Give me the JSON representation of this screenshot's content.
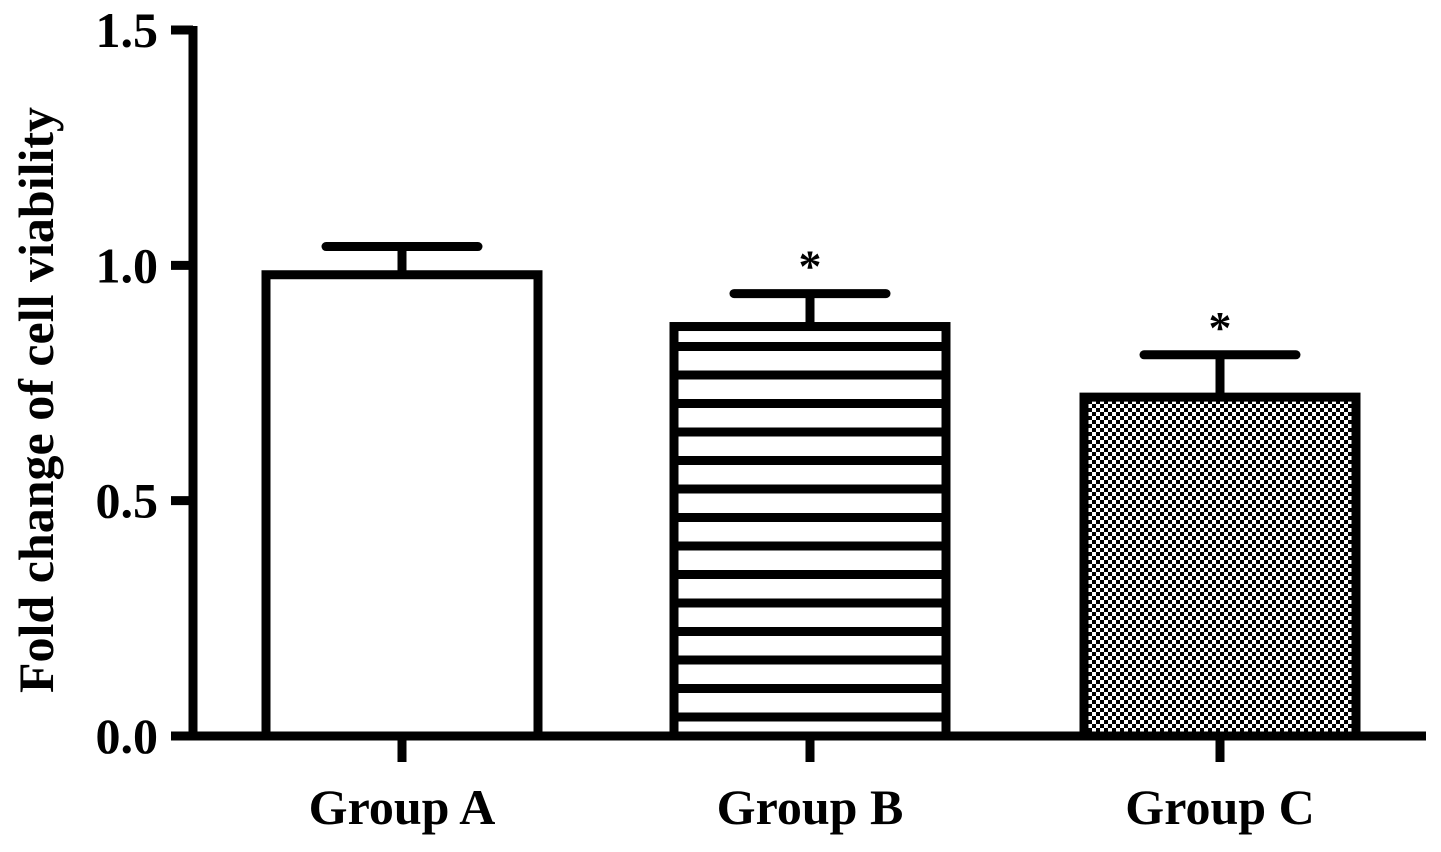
{
  "chart_data": {
    "type": "bar",
    "title": "",
    "xlabel": "",
    "ylabel": "Fold change of cell viability",
    "categories": [
      "Group A",
      "Group B",
      "Group C"
    ],
    "values": [
      0.98,
      0.87,
      0.72
    ],
    "errors": [
      0.06,
      0.07,
      0.09
    ],
    "annotations": [
      "",
      "*",
      "*"
    ],
    "patterns": [
      "none",
      "horizontal-stripes",
      "checkerboard"
    ],
    "ylim": [
      0,
      1.5
    ],
    "yticks": [
      0.0,
      0.5,
      1.0,
      1.5
    ],
    "ytick_labels": [
      "0.0",
      "0.5",
      "1.0",
      "1.5"
    ],
    "grid": false,
    "colors": {
      "stroke": "#000000",
      "fill": "#ffffff"
    }
  }
}
